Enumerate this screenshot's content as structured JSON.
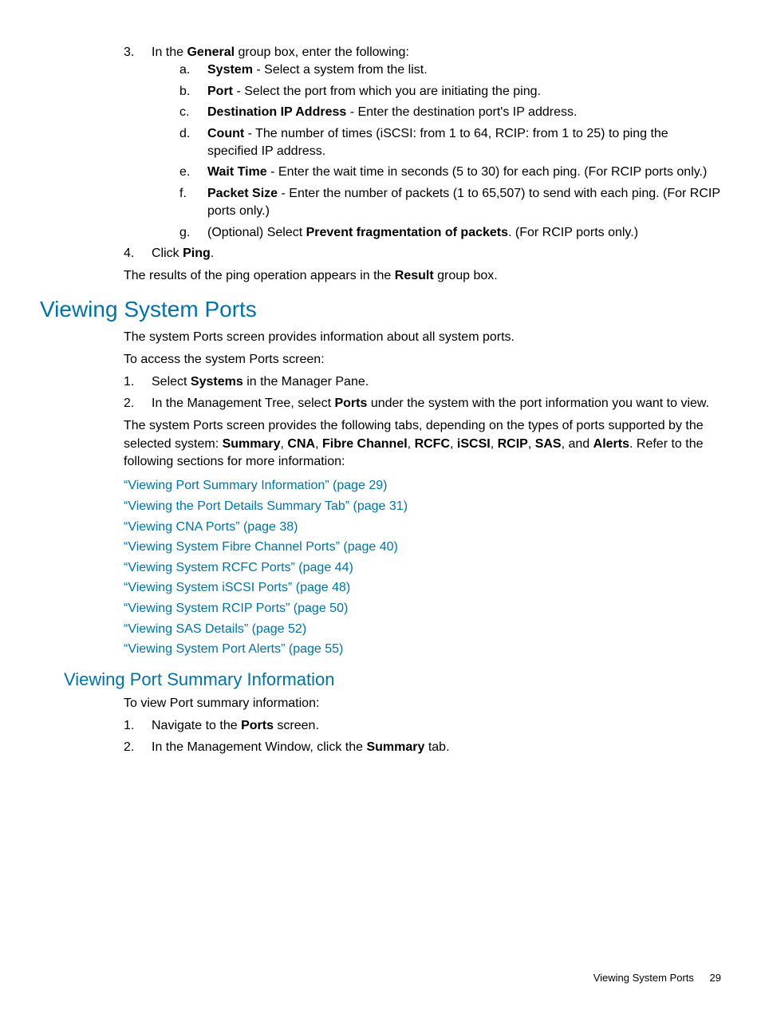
{
  "step3": {
    "num": "3.",
    "intro_pre": "In the ",
    "intro_bold": "General",
    "intro_post": " group box, enter the following:",
    "subs": {
      "a": {
        "letter": "a.",
        "bold": "System",
        "tail": " - Select a system from the list."
      },
      "b": {
        "letter": "b.",
        "bold": "Port",
        "tail": " - Select the port from which you are initiating the ping."
      },
      "c": {
        "letter": "c.",
        "bold": "Destination IP Address",
        "tail": " - Enter the destination port's IP address."
      },
      "d": {
        "letter": "d.",
        "bold": "Count",
        "tail": " - The number of times (iSCSI: from 1 to 64, RCIP: from 1 to 25) to ping the specified IP address."
      },
      "e": {
        "letter": "e.",
        "bold": "Wait Time",
        "tail": " - Enter the wait time in seconds (5 to 30) for each ping. (For RCIP ports only.)"
      },
      "f": {
        "letter": "f.",
        "bold": "Packet Size",
        "tail": " - Enter the number of packets (1 to 65,507) to send with each ping. (For RCIP ports only.)"
      },
      "g": {
        "letter": "g.",
        "pre": "(Optional) Select ",
        "bold": "Prevent fragmentation of packets",
        "tail": ". (For RCIP ports only.)"
      }
    }
  },
  "step4": {
    "num": "4.",
    "pre": "Click ",
    "bold": "Ping",
    "tail": "."
  },
  "results": {
    "pre": "The results of the ping operation appears in the ",
    "bold": "Result",
    "tail": " group box."
  },
  "h1": "Viewing System Ports",
  "intro1": "The system Ports screen provides information about all system ports.",
  "intro2": "To access the system Ports screen:",
  "access1": {
    "num": "1.",
    "pre": "Select ",
    "bold": "Systems",
    "tail": " in the Manager Pane."
  },
  "access2": {
    "num": "2.",
    "pre": "In the Management Tree, select ",
    "bold": "Ports",
    "tail": " under the system with the port information you want to view."
  },
  "tabs": {
    "pre": "The system Ports screen provides the following tabs, depending on the types of ports supported by the selected system: ",
    "b1": "Summary",
    "c1": ", ",
    "b2": "CNA",
    "c2": ", ",
    "b3": "Fibre Channel",
    "c3": ", ",
    "b4": "RCFC",
    "c4": ", ",
    "b5": "iSCSI",
    "c5": ", ",
    "b6": "RCIP",
    "c6": ", ",
    "b7": "SAS",
    "c7": ", and ",
    "b8": "Alerts",
    "tail": ". Refer to the following sections for more information:"
  },
  "links": {
    "l1": "“Viewing Port Summary Information” (page 29)",
    "l2": "“Viewing the Port Details Summary Tab” (page 31)",
    "l3": "“Viewing CNA Ports” (page 38)",
    "l4": "“Viewing System Fibre Channel Ports” (page 40)",
    "l5": "“Viewing System RCFC Ports” (page 44)",
    "l6": "“Viewing System iSCSI Ports” (page 48)",
    "l7": "“Viewing System RCIP Ports” (page 50)",
    "l8": "“Viewing SAS Details” (page 52)",
    "l9": "“Viewing System Port Alerts” (page 55)"
  },
  "h2": "Viewing Port Summary Information",
  "sum_intro": "To view Port summary information:",
  "sum1": {
    "num": "1.",
    "pre": "Navigate to the ",
    "bold": "Ports",
    "tail": " screen."
  },
  "sum2": {
    "num": "2.",
    "pre": "In the Management Window, click the ",
    "bold": "Summary",
    "tail": " tab."
  },
  "footer": {
    "title": "Viewing System Ports",
    "page": "29"
  },
  "colors": {
    "link": "#0073a8",
    "text": "#000000",
    "background": "#ffffff"
  }
}
